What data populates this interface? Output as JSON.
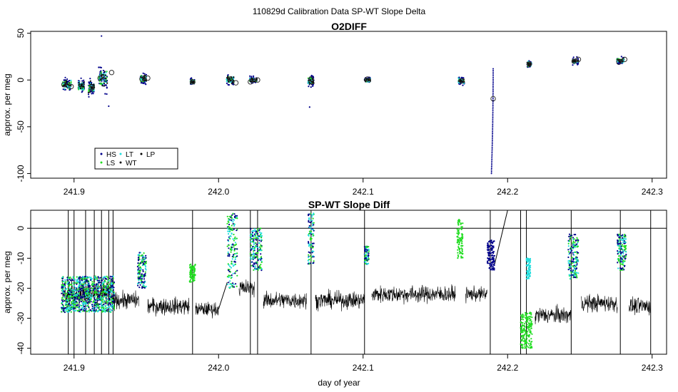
{
  "figure": {
    "title": "110829d   Calibration Data SP-WT Slope Delta",
    "xlabel": "day of year"
  },
  "colors": {
    "HS": "#00008b",
    "LS": "#22dd22",
    "LT": "#22dddd",
    "WT": "#111111",
    "LP": "#000000",
    "axis": "#000000"
  },
  "chart_data": [
    {
      "type": "scatter",
      "title": "O2DIFF",
      "xlabel": "",
      "ylabel": "approx. per meg",
      "xlim": [
        241.87,
        242.31
      ],
      "ylim": [
        -105,
        52
      ],
      "xticks": [
        241.9,
        242.0,
        242.1,
        242.2,
        242.3
      ],
      "xtick_labels": [
        "241.9",
        "242.0",
        "242.1",
        "242.2",
        "242.3"
      ],
      "yticks": [
        50,
        0,
        -50,
        -100
      ],
      "ytick_labels": [
        "50",
        "0",
        "-50",
        "-100"
      ],
      "legend": {
        "position": "bottom-left",
        "entries": [
          {
            "key": "HS",
            "label": "HS"
          },
          {
            "key": "LT",
            "label": "LT"
          },
          {
            "key": "LP",
            "label": "LP"
          },
          {
            "key": "LS",
            "label": "LS"
          },
          {
            "key": "WT",
            "label": "WT"
          }
        ]
      },
      "clusters": [
        {
          "x": 241.895,
          "y": -5,
          "spread": 6,
          "width": 0.006
        },
        {
          "x": 241.905,
          "y": -6,
          "spread": 6,
          "width": 0.004
        },
        {
          "x": 241.912,
          "y": -8,
          "spread": 8,
          "width": 0.004
        },
        {
          "x": 241.92,
          "y": 2,
          "spread": 12,
          "width": 0.006
        },
        {
          "x": 241.948,
          "y": 1,
          "spread": 5,
          "width": 0.004
        },
        {
          "x": 241.982,
          "y": -2,
          "spread": 3,
          "width": 0.003
        },
        {
          "x": 242.008,
          "y": 0,
          "spread": 5,
          "width": 0.005
        },
        {
          "x": 242.024,
          "y": 0,
          "spread": 3,
          "width": 0.005
        },
        {
          "x": 242.064,
          "y": -1,
          "spread": 5,
          "width": 0.004
        },
        {
          "x": 242.103,
          "y": 0,
          "spread": 3,
          "width": 0.004
        },
        {
          "x": 242.168,
          "y": -1,
          "spread": 4,
          "width": 0.004
        },
        {
          "x": 242.215,
          "y": 17,
          "spread": 3,
          "width": 0.003
        },
        {
          "x": 242.247,
          "y": 20,
          "spread": 3,
          "width": 0.004
        },
        {
          "x": 242.278,
          "y": 21,
          "spread": 3,
          "width": 0.005
        }
      ],
      "outliers": [
        {
          "x": 241.919,
          "y": 47
        },
        {
          "x": 241.924,
          "y": -28
        },
        {
          "x": 242.063,
          "y": -29
        }
      ],
      "drop_segment": {
        "x": 242.19,
        "y_from": 12,
        "y_to": -100
      },
      "circle_markers": [
        {
          "x": 241.893,
          "y": -5
        },
        {
          "x": 241.898,
          "y": -7
        },
        {
          "x": 241.912,
          "y": -9
        },
        {
          "x": 241.918,
          "y": 2
        },
        {
          "x": 241.926,
          "y": 8
        },
        {
          "x": 241.947,
          "y": 1
        },
        {
          "x": 241.951,
          "y": 2
        },
        {
          "x": 241.982,
          "y": -2
        },
        {
          "x": 242.008,
          "y": 1
        },
        {
          "x": 242.012,
          "y": -3
        },
        {
          "x": 242.022,
          "y": -2
        },
        {
          "x": 242.027,
          "y": 0
        },
        {
          "x": 242.064,
          "y": 1
        },
        {
          "x": 242.103,
          "y": 1
        },
        {
          "x": 242.168,
          "y": -1
        },
        {
          "x": 242.19,
          "y": -20
        },
        {
          "x": 242.215,
          "y": 17
        },
        {
          "x": 242.246,
          "y": 20
        },
        {
          "x": 242.249,
          "y": 22
        },
        {
          "x": 242.277,
          "y": 19
        },
        {
          "x": 242.281,
          "y": 22
        }
      ]
    },
    {
      "type": "line",
      "title": "SP-WT Slope Diff",
      "xlabel": "day of year",
      "ylabel": "approx. per meg",
      "xlim": [
        241.87,
        242.31
      ],
      "ylim": [
        -42,
        6
      ],
      "xticks": [
        241.9,
        242.0,
        242.1,
        242.2,
        242.3
      ],
      "xtick_labels": [
        "241.9",
        "242.0",
        "242.1",
        "242.2",
        "242.3"
      ],
      "yticks": [
        0,
        -10,
        -20,
        -30,
        -40
      ],
      "ytick_labels": [
        "0",
        "-10",
        "-20",
        "-30",
        "-40"
      ],
      "hline": 0,
      "baseline_segments": [
        {
          "x": [
            241.892,
            241.926
          ],
          "level": -22,
          "noise": 5
        },
        {
          "x": [
            241.926,
            241.945
          ],
          "level": -24,
          "noise": 3
        },
        {
          "x": [
            241.951,
            241.98
          ],
          "level": -26,
          "noise": 3
        },
        {
          "x": [
            241.984,
            242.0
          ],
          "level": -27,
          "noise": 2.5
        },
        {
          "x": [
            242.014,
            242.025
          ],
          "level": -20,
          "noise": 3
        },
        {
          "x": [
            242.031,
            242.061
          ],
          "level": -24,
          "noise": 3
        },
        {
          "x": [
            242.067,
            242.101
          ],
          "level": -24,
          "noise": 3
        },
        {
          "x": [
            242.106,
            242.164
          ],
          "level": -22,
          "noise": 3
        },
        {
          "x": [
            242.171,
            242.186
          ],
          "level": -22,
          "noise": 2.5
        },
        {
          "x": [
            242.219,
            242.244
          ],
          "level": -29,
          "noise": 3
        },
        {
          "x": [
            242.251,
            242.276
          ],
          "level": -25,
          "noise": 3
        },
        {
          "x": [
            242.284,
            242.299
          ],
          "level": -26,
          "noise": 3
        }
      ],
      "spikes": [
        241.896,
        241.9,
        241.908,
        241.914,
        241.919,
        241.924,
        241.927,
        241.982,
        242.022,
        242.027,
        242.064,
        242.101,
        242.188,
        242.209,
        242.213,
        242.244,
        242.278,
        242.299
      ],
      "colored_bands": [
        {
          "x": [
            241.891,
            241.928
          ],
          "y_from": -28,
          "y_to": -16,
          "series": "mixed"
        },
        {
          "x": [
            241.944,
            241.95
          ],
          "y_from": -20,
          "y_to": -8,
          "series": "mixed"
        },
        {
          "x": [
            241.98,
            241.984
          ],
          "y_from": -18,
          "y_to": -12,
          "series": "LS"
        },
        {
          "x": [
            242.006,
            242.013
          ],
          "y_from": -20,
          "y_to": 5,
          "series": "mixed"
        },
        {
          "x": [
            242.022,
            242.03
          ],
          "y_from": -14,
          "y_to": 0,
          "series": "mixed"
        },
        {
          "x": [
            242.062,
            242.066
          ],
          "y_from": -12,
          "y_to": 5,
          "series": "mixed"
        },
        {
          "x": [
            242.101,
            242.104
          ],
          "y_from": -12,
          "y_to": -6,
          "series": "mixed"
        },
        {
          "x": [
            242.165,
            242.169
          ],
          "y_from": -10,
          "y_to": 3,
          "series": "LS"
        },
        {
          "x": [
            242.186,
            242.191
          ],
          "y_from": -14,
          "y_to": -4,
          "series": "HS"
        },
        {
          "x": [
            242.209,
            242.217
          ],
          "y_from": -40,
          "y_to": -28,
          "series": "LS"
        },
        {
          "x": [
            242.213,
            242.216
          ],
          "y_from": -17,
          "y_to": -10,
          "series": "LT"
        },
        {
          "x": [
            242.242,
            242.249
          ],
          "y_from": -17,
          "y_to": -2,
          "series": "mixed"
        },
        {
          "x": [
            242.276,
            242.282
          ],
          "y_from": -14,
          "y_to": -2,
          "series": "mixed"
        }
      ]
    }
  ]
}
